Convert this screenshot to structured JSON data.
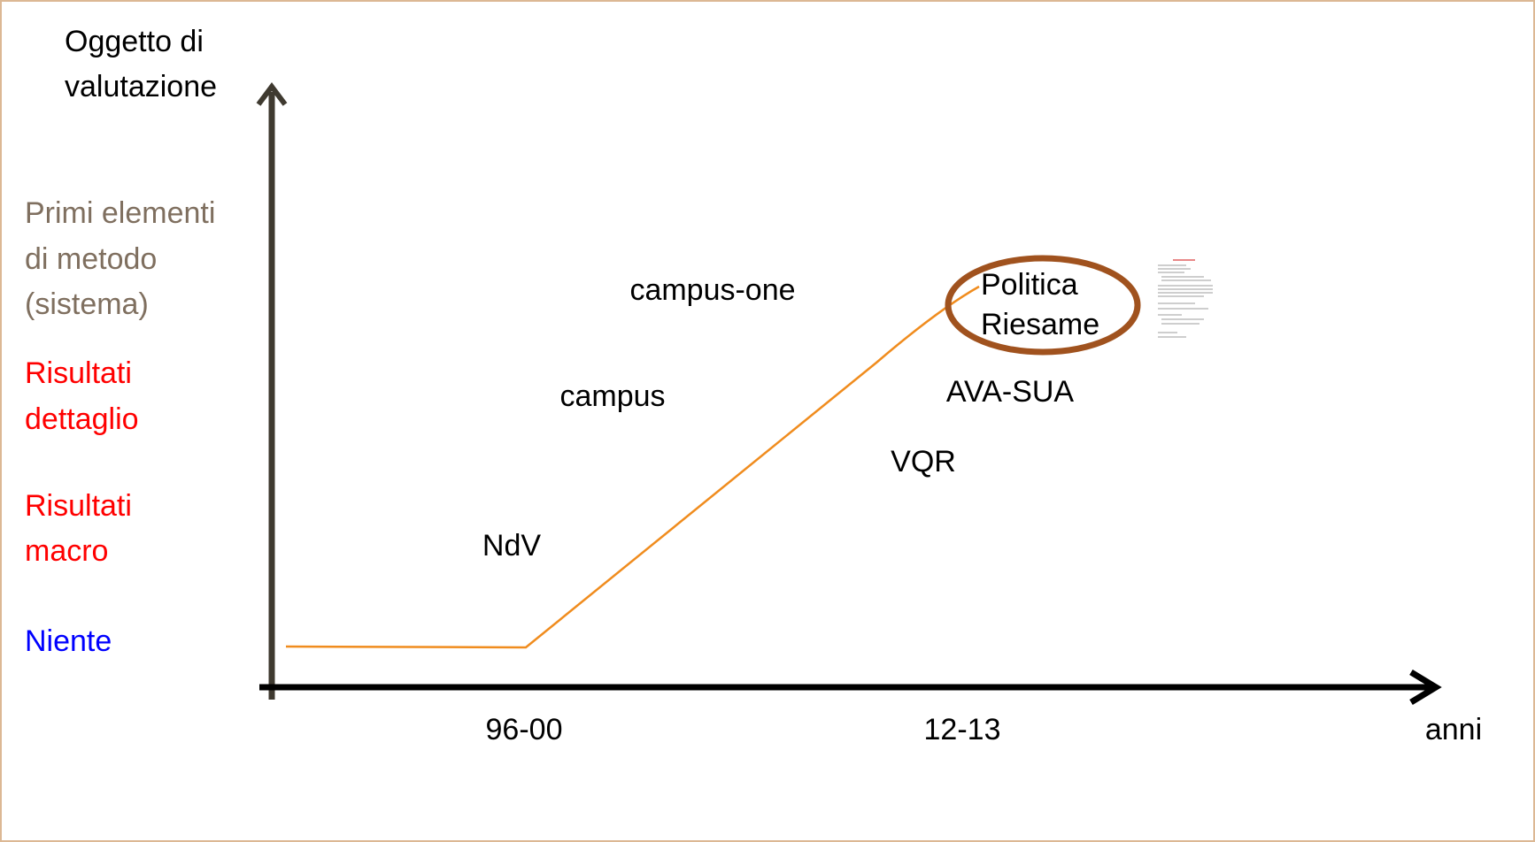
{
  "y_axis": {
    "title": [
      "Oggetto di",
      "valutazione"
    ],
    "levels": [
      {
        "lines": [
          "Primi elementi",
          "di metodo",
          "(sistema)"
        ]
      },
      {
        "lines": [
          "Risultati",
          "dettaglio"
        ]
      },
      {
        "lines": [
          "Risultati",
          "macro"
        ]
      },
      {
        "lines": [
          "Niente"
        ]
      }
    ]
  },
  "x_axis": {
    "title": "anni",
    "labels": [
      "96-00",
      "12-13"
    ]
  },
  "events": [
    "campus-one",
    "campus",
    "NdV",
    "VQR",
    "AVA-SUA"
  ],
  "highlight": [
    "Politica",
    "Riesame"
  ]
}
